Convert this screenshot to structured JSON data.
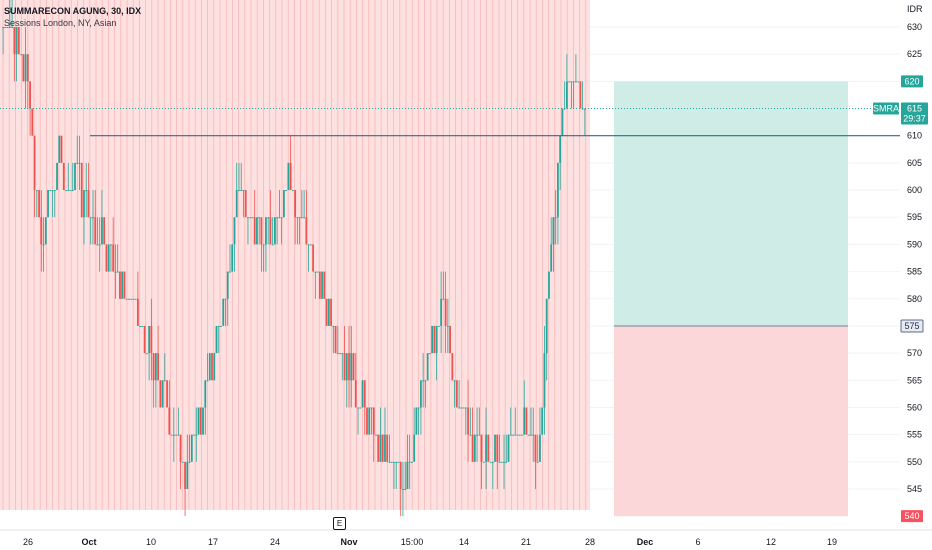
{
  "header": {
    "title": "SUMMARECON AGUNG, 30, IDX",
    "indicator": "Sessions London, NY, Asian"
  },
  "events_badge": "E",
  "colors": {
    "up": "#26a69a",
    "down": "#ef5350",
    "session_bg": "#fde0e0",
    "profit_zone": "#cfece6",
    "loss_zone": "#fbd7da",
    "level_line": "#2b6f8a",
    "last_price": "#26a69a",
    "stop_tag": "#f7525f",
    "entry_tag": "#5d6b88"
  },
  "chart_data": {
    "type": "candlestick",
    "title": "SUMMARECON AGUNG, 30, IDX",
    "currency": "IDR",
    "ylim": [
      540,
      632
    ],
    "y_ticks": [
      630,
      625,
      620,
      615,
      610,
      605,
      600,
      595,
      590,
      585,
      580,
      575,
      570,
      565,
      560,
      555,
      550,
      545
    ],
    "x_ticks": [
      "26",
      "Oct",
      "10",
      "17",
      "24",
      "Nov",
      "15:00",
      "14",
      "21",
      "28",
      "Dec",
      "6",
      "12",
      "19"
    ],
    "symbol": "SMRA",
    "last_price": 615,
    "countdown": "29:37",
    "horizontal_level": 610,
    "position": {
      "target": 620,
      "entry": 575,
      "stop": 540
    },
    "price_path": [
      630,
      632,
      628,
      626,
      622,
      612,
      598,
      588,
      600,
      603,
      605,
      600,
      602,
      605,
      598,
      596,
      592,
      594,
      590,
      588,
      585,
      580,
      582,
      578,
      575,
      572,
      568,
      566,
      562,
      558,
      555,
      552,
      550,
      552,
      556,
      560,
      565,
      570,
      575,
      580,
      590,
      600,
      602,
      598,
      594,
      592,
      590,
      593,
      597,
      600,
      603,
      598,
      595,
      590,
      588,
      585,
      582,
      578,
      575,
      572,
      568,
      566,
      564,
      560,
      558,
      555,
      552,
      551,
      550,
      548,
      547,
      550,
      555,
      560,
      565,
      570,
      575,
      578,
      572,
      566,
      562,
      558,
      555,
      553,
      551,
      550,
      551,
      550,
      551,
      553,
      555,
      558,
      556,
      553,
      552,
      570,
      590,
      600,
      612,
      618,
      620,
      617,
      615
    ]
  }
}
